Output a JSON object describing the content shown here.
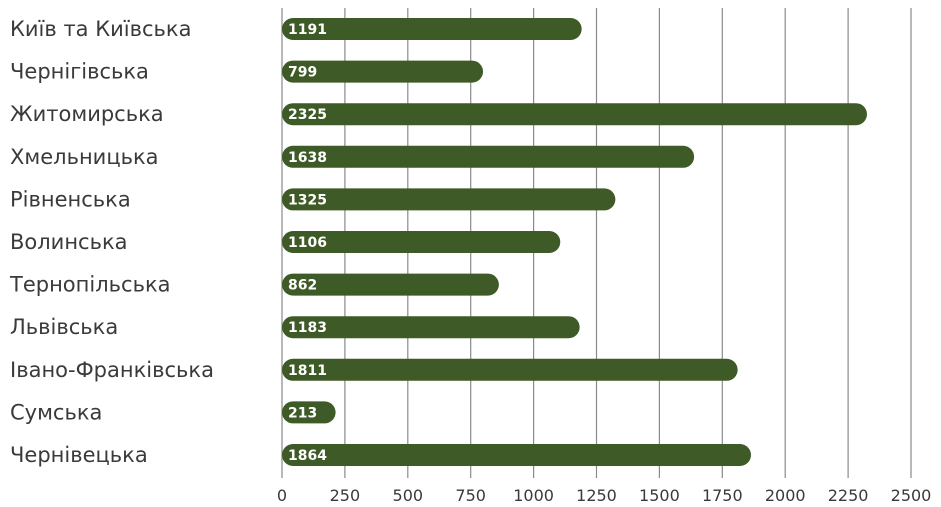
{
  "chart_data": {
    "type": "bar",
    "orientation": "horizontal",
    "title": "",
    "xlabel": "",
    "ylabel": "",
    "categories": [
      "Київ та Київська",
      "Чернігівська",
      "Житомирська",
      "Хмельницька",
      "Рівненська",
      "Волинська",
      "Тернопільська",
      "Львівська",
      "Івано-Франківська",
      "Сумська",
      "Чернівецька"
    ],
    "values": [
      1191,
      799,
      2325,
      1638,
      1325,
      1106,
      862,
      1183,
      1811,
      213,
      1864
    ],
    "data_labels": [
      "1191",
      "799",
      "2325",
      "1638",
      "1325",
      "1106",
      "862",
      "1183",
      "1811",
      "213",
      "1864"
    ],
    "xlim": [
      0,
      2500
    ],
    "x_ticks": [
      "0",
      "250",
      "500",
      "750",
      "1000",
      "1250",
      "1500",
      "1750",
      "2000",
      "2250",
      "2500"
    ],
    "grid": "vertical",
    "colors": {
      "bar": "#3e5a26",
      "grid": "#8a8a8a",
      "text": "#3a3a3a",
      "bar_label": "#ffffff"
    }
  }
}
